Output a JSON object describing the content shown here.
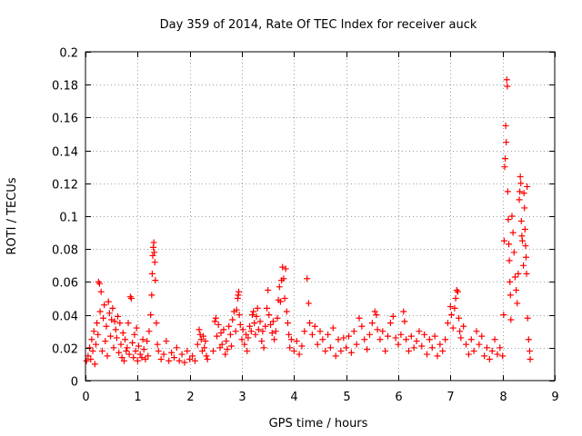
{
  "chart_data": {
    "type": "scatter",
    "title": "Day 359 of 2014, Rate Of TEC Index for receiver auck",
    "xlabel": "GPS time / hours",
    "ylabel": "ROTI / TECUs",
    "xlim": [
      0,
      9
    ],
    "ylim": [
      0,
      0.2
    ],
    "xticks": [
      0,
      1,
      2,
      3,
      4,
      5,
      6,
      7,
      8,
      9
    ],
    "yticks": [
      0,
      0.02,
      0.04,
      0.06,
      0.08,
      0.1,
      0.12,
      0.14,
      0.16,
      0.18,
      0.2
    ],
    "grid": true,
    "marker": "+",
    "marker_color": "#ff0000",
    "series": [
      {
        "name": "ROTI",
        "points": [
          [
            0.02,
            0.012
          ],
          [
            0.05,
            0.015
          ],
          [
            0.08,
            0.02
          ],
          [
            0.1,
            0.013
          ],
          [
            0.12,
            0.025
          ],
          [
            0.14,
            0.018
          ],
          [
            0.16,
            0.03
          ],
          [
            0.18,
            0.01
          ],
          [
            0.2,
            0.022
          ],
          [
            0.22,
            0.035
          ],
          [
            0.24,
            0.028
          ],
          [
            0.25,
            0.06
          ],
          [
            0.27,
            0.059
          ],
          [
            0.28,
            0.042
          ],
          [
            0.3,
            0.054
          ],
          [
            0.32,
            0.018
          ],
          [
            0.34,
            0.038
          ],
          [
            0.36,
            0.046
          ],
          [
            0.38,
            0.024
          ],
          [
            0.4,
            0.033
          ],
          [
            0.42,
            0.015
          ],
          [
            0.44,
            0.048
          ],
          [
            0.46,
            0.041
          ],
          [
            0.48,
            0.027
          ],
          [
            0.5,
            0.037
          ],
          [
            0.52,
            0.044
          ],
          [
            0.54,
            0.02
          ],
          [
            0.56,
            0.036
          ],
          [
            0.58,
            0.031
          ],
          [
            0.6,
            0.026
          ],
          [
            0.62,
            0.039
          ],
          [
            0.64,
            0.017
          ],
          [
            0.66,
            0.035
          ],
          [
            0.68,
            0.022
          ],
          [
            0.7,
            0.014
          ],
          [
            0.72,
            0.029
          ],
          [
            0.74,
            0.012
          ],
          [
            0.76,
            0.025
          ],
          [
            0.78,
            0.018
          ],
          [
            0.8,
            0.02
          ],
          [
            0.82,
            0.035
          ],
          [
            0.84,
            0.016
          ],
          [
            0.86,
            0.051
          ],
          [
            0.88,
            0.05
          ],
          [
            0.9,
            0.023
          ],
          [
            0.92,
            0.014
          ],
          [
            0.94,
            0.028
          ],
          [
            0.96,
            0.018
          ],
          [
            0.98,
            0.032
          ],
          [
            1.0,
            0.012
          ],
          [
            1.02,
            0.021
          ],
          [
            1.05,
            0.016
          ],
          [
            1.08,
            0.014
          ],
          [
            1.1,
            0.025
          ],
          [
            1.12,
            0.019
          ],
          [
            1.15,
            0.013
          ],
          [
            1.18,
            0.024
          ],
          [
            1.2,
            0.015
          ],
          [
            1.22,
            0.03
          ],
          [
            1.25,
            0.04
          ],
          [
            1.27,
            0.052
          ],
          [
            1.28,
            0.065
          ],
          [
            1.29,
            0.076
          ],
          [
            1.3,
            0.081
          ],
          [
            1.31,
            0.084
          ],
          [
            1.32,
            0.078
          ],
          [
            1.33,
            0.072
          ],
          [
            1.34,
            0.061
          ],
          [
            1.36,
            0.035
          ],
          [
            1.38,
            0.022
          ],
          [
            1.4,
            0.018
          ],
          [
            1.45,
            0.013
          ],
          [
            1.5,
            0.016
          ],
          [
            1.55,
            0.024
          ],
          [
            1.6,
            0.012
          ],
          [
            1.65,
            0.017
          ],
          [
            1.7,
            0.014
          ],
          [
            1.75,
            0.02
          ],
          [
            1.8,
            0.012
          ],
          [
            1.85,
            0.016
          ],
          [
            1.9,
            0.011
          ],
          [
            1.95,
            0.018
          ],
          [
            2.0,
            0.013
          ],
          [
            2.05,
            0.015
          ],
          [
            2.1,
            0.012
          ],
          [
            2.15,
            0.022
          ],
          [
            2.18,
            0.031
          ],
          [
            2.2,
            0.028
          ],
          [
            2.22,
            0.025
          ],
          [
            2.24,
            0.018
          ],
          [
            2.26,
            0.027
          ],
          [
            2.28,
            0.02
          ],
          [
            2.3,
            0.024
          ],
          [
            2.32,
            0.015
          ],
          [
            2.34,
            0.013
          ],
          [
            2.45,
            0.018
          ],
          [
            2.48,
            0.036
          ],
          [
            2.5,
            0.038
          ],
          [
            2.52,
            0.027
          ],
          [
            2.55,
            0.034
          ],
          [
            2.58,
            0.02
          ],
          [
            2.6,
            0.029
          ],
          [
            2.62,
            0.022
          ],
          [
            2.65,
            0.031
          ],
          [
            2.68,
            0.016
          ],
          [
            2.7,
            0.024
          ],
          [
            2.72,
            0.019
          ],
          [
            2.75,
            0.033
          ],
          [
            2.78,
            0.028
          ],
          [
            2.8,
            0.021
          ],
          [
            2.82,
            0.037
          ],
          [
            2.85,
            0.042
          ],
          [
            2.88,
            0.03
          ],
          [
            2.9,
            0.043
          ],
          [
            2.92,
            0.05
          ],
          [
            2.93,
            0.052
          ],
          [
            2.94,
            0.054
          ],
          [
            2.95,
            0.04
          ],
          [
            2.97,
            0.034
          ],
          [
            3.0,
            0.025
          ],
          [
            3.02,
            0.031
          ],
          [
            3.05,
            0.022
          ],
          [
            3.08,
            0.028
          ],
          [
            3.1,
            0.018
          ],
          [
            3.12,
            0.026
          ],
          [
            3.15,
            0.033
          ],
          [
            3.18,
            0.03
          ],
          [
            3.2,
            0.04
          ],
          [
            3.22,
            0.042
          ],
          [
            3.24,
            0.035
          ],
          [
            3.26,
            0.028
          ],
          [
            3.28,
            0.039
          ],
          [
            3.3,
            0.044
          ],
          [
            3.32,
            0.031
          ],
          [
            3.35,
            0.036
          ],
          [
            3.38,
            0.024
          ],
          [
            3.4,
            0.03
          ],
          [
            3.42,
            0.02
          ],
          [
            3.45,
            0.033
          ],
          [
            3.48,
            0.044
          ],
          [
            3.5,
            0.055
          ],
          [
            3.52,
            0.04
          ],
          [
            3.55,
            0.034
          ],
          [
            3.58,
            0.029
          ],
          [
            3.6,
            0.036
          ],
          [
            3.62,
            0.025
          ],
          [
            3.65,
            0.03
          ],
          [
            3.68,
            0.038
          ],
          [
            3.7,
            0.049
          ],
          [
            3.72,
            0.057
          ],
          [
            3.74,
            0.048
          ],
          [
            3.76,
            0.061
          ],
          [
            3.78,
            0.069
          ],
          [
            3.8,
            0.062
          ],
          [
            3.82,
            0.05
          ],
          [
            3.84,
            0.068
          ],
          [
            3.86,
            0.042
          ],
          [
            3.88,
            0.035
          ],
          [
            3.9,
            0.028
          ],
          [
            3.92,
            0.02
          ],
          [
            3.95,
            0.025
          ],
          [
            4.0,
            0.018
          ],
          [
            4.05,
            0.024
          ],
          [
            4.1,
            0.016
          ],
          [
            4.15,
            0.021
          ],
          [
            4.2,
            0.03
          ],
          [
            4.25,
            0.062
          ],
          [
            4.28,
            0.047
          ],
          [
            4.3,
            0.035
          ],
          [
            4.35,
            0.028
          ],
          [
            4.4,
            0.033
          ],
          [
            4.45,
            0.022
          ],
          [
            4.5,
            0.03
          ],
          [
            4.55,
            0.025
          ],
          [
            4.6,
            0.018
          ],
          [
            4.65,
            0.028
          ],
          [
            4.7,
            0.02
          ],
          [
            4.75,
            0.032
          ],
          [
            4.8,
            0.015
          ],
          [
            4.85,
            0.025
          ],
          [
            4.9,
            0.018
          ],
          [
            4.95,
            0.026
          ],
          [
            5.0,
            0.02
          ],
          [
            5.05,
            0.027
          ],
          [
            5.1,
            0.017
          ],
          [
            5.15,
            0.03
          ],
          [
            5.2,
            0.022
          ],
          [
            5.25,
            0.038
          ],
          [
            5.3,
            0.033
          ],
          [
            5.35,
            0.025
          ],
          [
            5.4,
            0.019
          ],
          [
            5.45,
            0.028
          ],
          [
            5.5,
            0.035
          ],
          [
            5.55,
            0.042
          ],
          [
            5.58,
            0.04
          ],
          [
            5.6,
            0.031
          ],
          [
            5.65,
            0.025
          ],
          [
            5.7,
            0.03
          ],
          [
            5.75,
            0.018
          ],
          [
            5.8,
            0.027
          ],
          [
            5.85,
            0.035
          ],
          [
            5.9,
            0.039
          ],
          [
            5.95,
            0.026
          ],
          [
            6.0,
            0.022
          ],
          [
            6.05,
            0.028
          ],
          [
            6.1,
            0.042
          ],
          [
            6.12,
            0.036
          ],
          [
            6.15,
            0.025
          ],
          [
            6.2,
            0.018
          ],
          [
            6.25,
            0.027
          ],
          [
            6.3,
            0.02
          ],
          [
            6.35,
            0.024
          ],
          [
            6.4,
            0.03
          ],
          [
            6.45,
            0.021
          ],
          [
            6.5,
            0.028
          ],
          [
            6.55,
            0.016
          ],
          [
            6.6,
            0.025
          ],
          [
            6.65,
            0.02
          ],
          [
            6.7,
            0.027
          ],
          [
            6.75,
            0.015
          ],
          [
            6.8,
            0.022
          ],
          [
            6.85,
            0.018
          ],
          [
            6.9,
            0.025
          ],
          [
            6.95,
            0.035
          ],
          [
            7.0,
            0.045
          ],
          [
            7.02,
            0.04
          ],
          [
            7.05,
            0.032
          ],
          [
            7.08,
            0.044
          ],
          [
            7.1,
            0.05
          ],
          [
            7.12,
            0.055
          ],
          [
            7.14,
            0.054
          ],
          [
            7.16,
            0.038
          ],
          [
            7.18,
            0.03
          ],
          [
            7.2,
            0.026
          ],
          [
            7.25,
            0.033
          ],
          [
            7.3,
            0.022
          ],
          [
            7.35,
            0.016
          ],
          [
            7.4,
            0.025
          ],
          [
            7.45,
            0.018
          ],
          [
            7.5,
            0.03
          ],
          [
            7.55,
            0.022
          ],
          [
            7.6,
            0.027
          ],
          [
            7.65,
            0.015
          ],
          [
            7.7,
            0.02
          ],
          [
            7.75,
            0.013
          ],
          [
            7.8,
            0.018
          ],
          [
            7.85,
            0.025
          ],
          [
            7.9,
            0.016
          ],
          [
            7.95,
            0.02
          ],
          [
            8.0,
            0.015
          ],
          [
            8.02,
            0.04
          ],
          [
            8.03,
            0.085
          ],
          [
            8.04,
            0.13
          ],
          [
            8.05,
            0.135
          ],
          [
            8.06,
            0.155
          ],
          [
            8.07,
            0.145
          ],
          [
            8.08,
            0.183
          ],
          [
            8.09,
            0.179
          ],
          [
            8.1,
            0.115
          ],
          [
            8.11,
            0.098
          ],
          [
            8.12,
            0.083
          ],
          [
            8.13,
            0.073
          ],
          [
            8.14,
            0.06
          ],
          [
            8.15,
            0.052
          ],
          [
            8.16,
            0.037
          ],
          [
            8.18,
            0.1
          ],
          [
            8.2,
            0.09
          ],
          [
            8.22,
            0.078
          ],
          [
            8.24,
            0.063
          ],
          [
            8.26,
            0.055
          ],
          [
            8.28,
            0.047
          ],
          [
            8.3,
            0.065
          ],
          [
            8.32,
            0.11
          ],
          [
            8.33,
            0.115
          ],
          [
            8.34,
            0.124
          ],
          [
            8.35,
            0.12
          ],
          [
            8.36,
            0.097
          ],
          [
            8.37,
            0.088
          ],
          [
            8.38,
            0.085
          ],
          [
            8.4,
            0.07
          ],
          [
            8.41,
            0.114
          ],
          [
            8.42,
            0.105
          ],
          [
            8.43,
            0.092
          ],
          [
            8.44,
            0.082
          ],
          [
            8.45,
            0.075
          ],
          [
            8.46,
            0.065
          ],
          [
            8.47,
            0.118
          ],
          [
            8.48,
            0.038
          ],
          [
            8.5,
            0.025
          ],
          [
            8.52,
            0.018
          ],
          [
            8.53,
            0.013
          ]
        ]
      }
    ]
  }
}
